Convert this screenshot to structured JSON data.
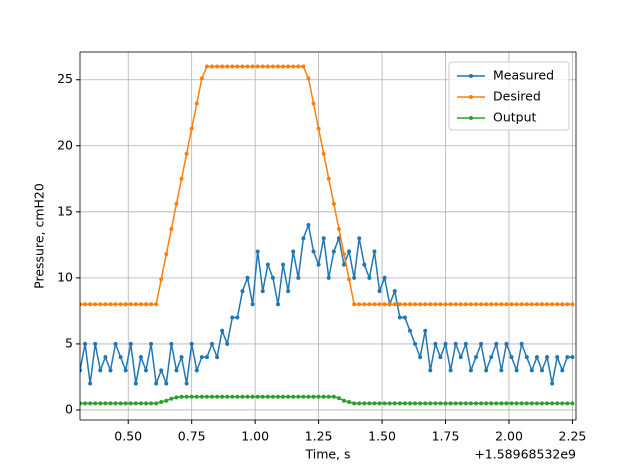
{
  "chart_data": {
    "type": "line",
    "xlabel": "Time, s",
    "ylabel": "Pressure, cmH20",
    "x_offset_label": "+1.58968532e9",
    "xlim": [
      0.31,
      2.264
    ],
    "ylim": [
      -0.76,
      27.1
    ],
    "xticks": [
      {
        "value": 0.5,
        "label": "0.50"
      },
      {
        "value": 0.75,
        "label": "0.75"
      },
      {
        "value": 1.0,
        "label": "1.00"
      },
      {
        "value": 1.25,
        "label": "1.25"
      },
      {
        "value": 1.5,
        "label": "1.50"
      },
      {
        "value": 1.75,
        "label": "1.75"
      },
      {
        "value": 2.0,
        "label": "2.00"
      },
      {
        "value": 2.25,
        "label": "2.25"
      }
    ],
    "yticks": [
      0,
      5,
      10,
      15,
      20,
      25
    ],
    "grid": true,
    "legend": "upper right",
    "x": [
      0.31,
      0.33,
      0.35,
      0.37,
      0.39,
      0.41,
      0.43,
      0.45,
      0.47,
      0.49,
      0.51,
      0.53,
      0.55,
      0.57,
      0.59,
      0.61,
      0.63,
      0.65,
      0.67,
      0.69,
      0.71,
      0.73,
      0.75,
      0.77,
      0.79,
      0.81,
      0.83,
      0.85,
      0.87,
      0.89,
      0.91,
      0.93,
      0.95,
      0.97,
      0.99,
      1.01,
      1.03,
      1.05,
      1.07,
      1.09,
      1.11,
      1.13,
      1.15,
      1.17,
      1.19,
      1.21,
      1.23,
      1.25,
      1.27,
      1.29,
      1.31,
      1.33,
      1.35,
      1.37,
      1.39,
      1.41,
      1.43,
      1.45,
      1.47,
      1.49,
      1.51,
      1.53,
      1.55,
      1.57,
      1.59,
      1.61,
      1.63,
      1.65,
      1.67,
      1.69,
      1.71,
      1.73,
      1.75,
      1.77,
      1.79,
      1.81,
      1.83,
      1.85,
      1.87,
      1.89,
      1.91,
      1.93,
      1.95,
      1.97,
      1.99,
      2.01,
      2.03,
      2.05,
      2.07,
      2.09,
      2.11,
      2.13,
      2.15,
      2.17,
      2.19,
      2.21,
      2.23,
      2.25
    ],
    "series": [
      {
        "name": "Measured",
        "color": "#1f77b4",
        "values": [
          3,
          5,
          2,
          5,
          3,
          4,
          3,
          5,
          4,
          3,
          5,
          2,
          4,
          3,
          5,
          2,
          3,
          2,
          5,
          3,
          4,
          2,
          5,
          3,
          4,
          4,
          5,
          4,
          6,
          5,
          7,
          7,
          9,
          10,
          8,
          12,
          9,
          11,
          10,
          8,
          11,
          9,
          12,
          10,
          13,
          14,
          12,
          11,
          13,
          10,
          12,
          13,
          11,
          12,
          10,
          13,
          11,
          10,
          12,
          9,
          10,
          8,
          9,
          7,
          7,
          6,
          5,
          4,
          6,
          3,
          5,
          4,
          5,
          3,
          5,
          4,
          5,
          3,
          4,
          5,
          3,
          4,
          5,
          3,
          5,
          4,
          3,
          5,
          4,
          3,
          4,
          3,
          4,
          2,
          4,
          3,
          4,
          4
        ]
      },
      {
        "name": "Desired",
        "color": "#ff7f0e",
        "values": [
          8,
          8,
          8,
          8,
          8,
          8,
          8,
          8,
          8,
          8,
          8,
          8,
          8,
          8,
          8,
          8,
          9.9,
          11.8,
          13.7,
          15.6,
          17.5,
          19.4,
          21.3,
          23.2,
          25.1,
          26,
          26,
          26,
          26,
          26,
          26,
          26,
          26,
          26,
          26,
          26,
          26,
          26,
          26,
          26,
          26,
          26,
          26,
          26,
          26,
          25.1,
          23.2,
          21.3,
          19.4,
          17.5,
          15.6,
          13.7,
          11.8,
          9.9,
          8.0,
          8,
          8,
          8,
          8,
          8,
          8,
          8,
          8,
          8,
          8,
          8,
          8,
          8,
          8,
          8,
          8,
          8,
          8,
          8,
          8,
          8,
          8,
          8,
          8,
          8,
          8,
          8,
          8,
          8,
          8,
          8,
          8,
          8,
          8,
          8,
          8,
          8,
          8,
          8,
          8,
          8,
          8,
          8
        ]
      },
      {
        "name": "Output",
        "color": "#2ca02c",
        "values": [
          0.5,
          0.5,
          0.5,
          0.5,
          0.5,
          0.5,
          0.5,
          0.5,
          0.5,
          0.5,
          0.5,
          0.5,
          0.5,
          0.5,
          0.5,
          0.5,
          0.6,
          0.7,
          0.85,
          0.95,
          1,
          1,
          1,
          1,
          1,
          1,
          1,
          1,
          1,
          1,
          1,
          1,
          1,
          1,
          1,
          1,
          1,
          1,
          1,
          1,
          1,
          1,
          1,
          1,
          1,
          1,
          1,
          1,
          1,
          1,
          1,
          0.9,
          0.7,
          0.6,
          0.5,
          0.5,
          0.5,
          0.5,
          0.5,
          0.5,
          0.5,
          0.5,
          0.5,
          0.5,
          0.5,
          0.5,
          0.5,
          0.5,
          0.5,
          0.5,
          0.5,
          0.5,
          0.5,
          0.5,
          0.5,
          0.5,
          0.5,
          0.5,
          0.5,
          0.5,
          0.5,
          0.5,
          0.5,
          0.5,
          0.5,
          0.5,
          0.5,
          0.5,
          0.5,
          0.5,
          0.5,
          0.5,
          0.5,
          0.5,
          0.5,
          0.5,
          0.5,
          0.5
        ]
      }
    ]
  }
}
